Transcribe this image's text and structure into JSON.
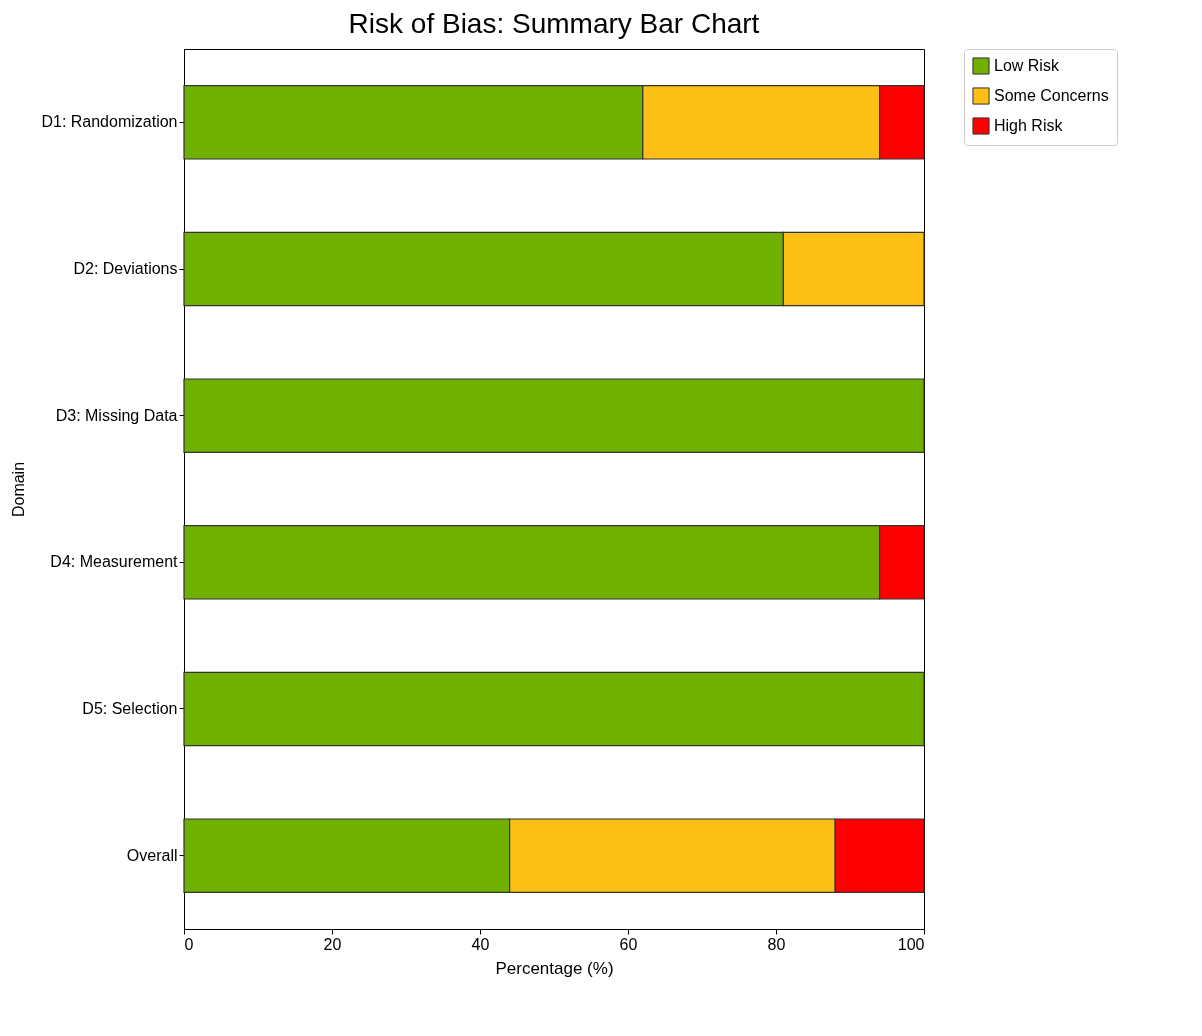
{
  "chart_data": {
    "type": "bar",
    "orientation": "horizontal",
    "stacked": true,
    "title": "Risk of Bias: Summary Bar Chart",
    "xlabel": "Percentage (%)",
    "ylabel": "Domain",
    "categories": [
      "D1: Randomization",
      "D2: Deviations",
      "D3: Missing Data",
      "D4: Measurement",
      "D5: Selection",
      "Overall"
    ],
    "series": [
      {
        "name": "Low Risk",
        "color": "#70b000",
        "values": [
          62,
          81,
          100,
          94,
          100,
          44
        ]
      },
      {
        "name": "Some Concerns",
        "color": "#fbbf16",
        "values": [
          32,
          19,
          null,
          null,
          null,
          44
        ]
      },
      {
        "name": "High Risk",
        "color": "#ff0000",
        "values": [
          6,
          null,
          null,
          6,
          null,
          12
        ]
      }
    ],
    "xlim": [
      0,
      100
    ],
    "xticks": [
      0,
      20,
      40,
      60,
      80,
      100
    ],
    "legend": "top right",
    "grid": false
  }
}
